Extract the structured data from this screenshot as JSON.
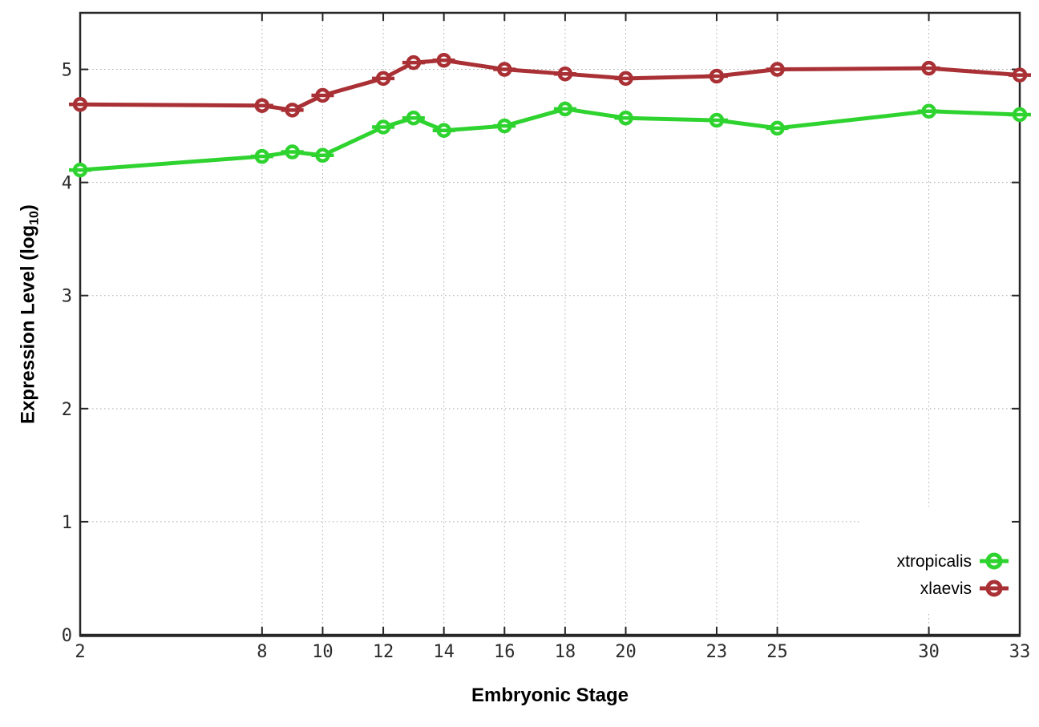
{
  "chart_data": {
    "type": "line",
    "title": "",
    "xlabel": "Embryonic Stage",
    "ylabel": "Expression Level (log10)",
    "ylabel_main": "Expression Level (log",
    "ylabel_sub": "10",
    "ylabel_close": ")",
    "x": [
      2,
      8,
      9,
      10,
      12,
      13,
      14,
      16,
      18,
      20,
      23,
      25,
      30,
      33
    ],
    "series": [
      {
        "name": "xtropicalis",
        "color": "#2fd32f",
        "values": [
          4.11,
          4.23,
          4.27,
          4.24,
          4.49,
          4.57,
          4.46,
          4.5,
          4.65,
          4.57,
          4.55,
          4.48,
          4.63,
          4.6
        ]
      },
      {
        "name": "xlaevis",
        "color": "#a93034",
        "values": [
          4.69,
          4.68,
          4.64,
          4.77,
          4.92,
          5.06,
          5.08,
          5.0,
          4.96,
          4.92,
          4.94,
          5.0,
          5.01,
          4.95
        ]
      }
    ],
    "xticks": [
      2,
      8,
      10,
      12,
      14,
      16,
      18,
      20,
      23,
      25,
      30,
      33
    ],
    "yticks": [
      0,
      1,
      2,
      3,
      4,
      5
    ],
    "xlim": [
      2,
      33
    ],
    "ylim": [
      0,
      5.5
    ],
    "grid": true,
    "marker": "open-circle-with-errorbar",
    "legend": {
      "position": "inside-bottom-right",
      "entries": [
        "xtropicalis",
        "xlaevis"
      ]
    }
  },
  "colors": {
    "background": "#ffffff",
    "axis": "#262626",
    "grid": "#aaaaaa",
    "tick_label": "#2b2b2b",
    "legend_background": "#ffffff",
    "xtropicalis": "#2fd32f",
    "xlaevis": "#a93034"
  }
}
